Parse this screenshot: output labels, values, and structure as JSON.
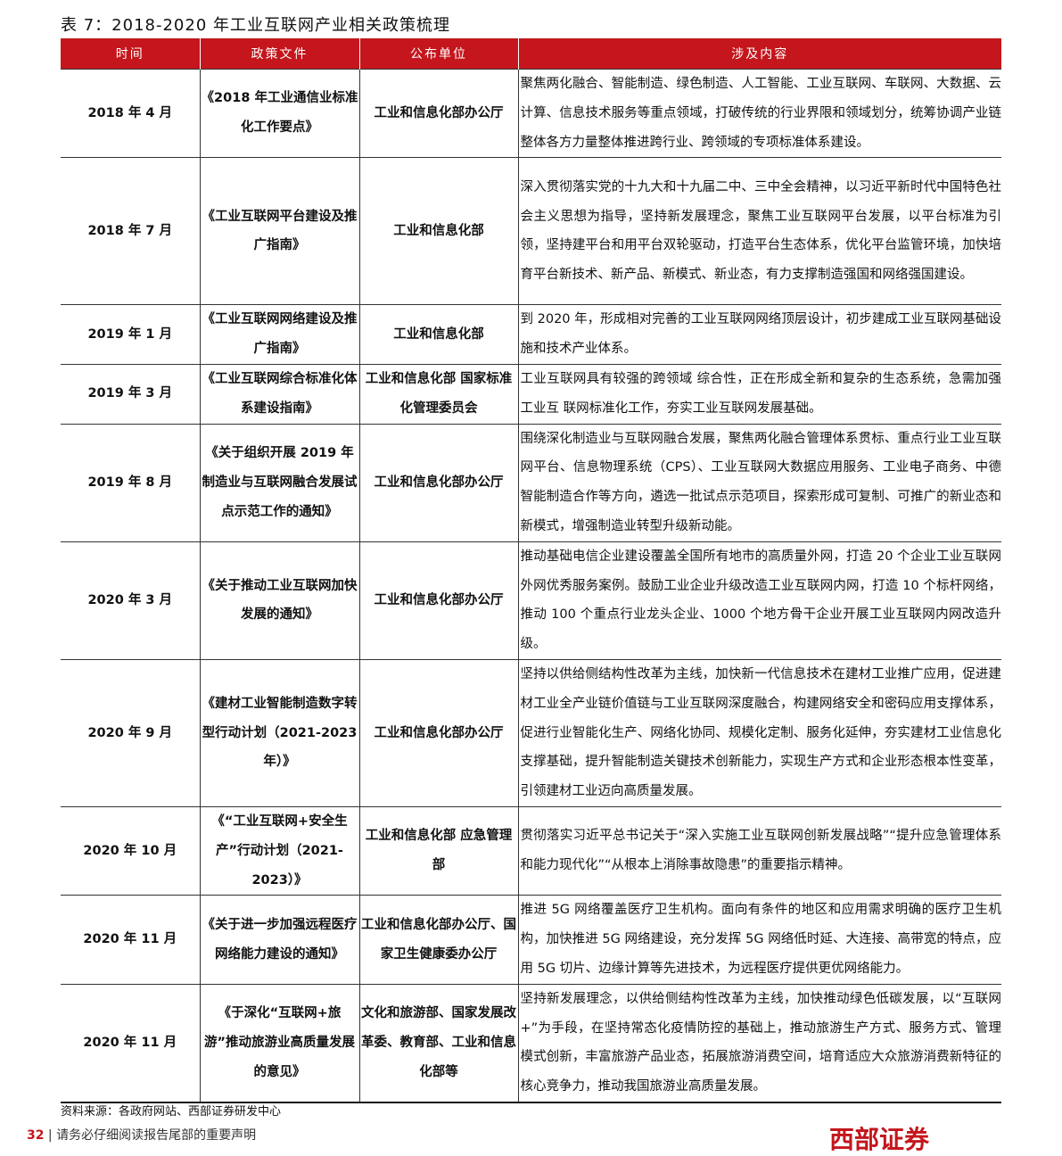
{
  "title": "表 7：2018-2020 年工业互联网产业相关政策梳理",
  "headers": [
    "时间",
    "政策文件",
    "公布单位",
    "涉及内容"
  ],
  "rows": [
    [
      "2018 年 4 月",
      "《2018 年工业通信业标准化工作要点》",
      "工业和信息化部办公厅",
      "聚焦两化融合、智能制造、绿色制造、人工智能、工业互联网、车联网、大数据、云计算、信息技术服务等重点领域，打破传统的行业界限和领域划分，统筹协调产业链整体各方力量整体推进跨行业、跨领域的专项标准体系建设。"
    ],
    [
      "2018 年 7 月",
      "《工业互联网平台建设及推广指南》",
      "工业和信息化部",
      "深入贯彻落实党的十九大和十九届二中、三中全会精神，以习近平新时代中国特色社会主义思想为指导，坚持新发展理念，聚焦工业互联网平台发展，以平台标准为引领，坚持建平台和用平台双轮驱动，打造平台生态体系，优化平台监管环境，加快培育平台新技术、新产品、新模式、新业态，有力支撑制造强国和网络强国建设。"
    ],
    [
      "2019 年 1 月",
      "《工业互联网网络建设及推广指南》",
      "工业和信息化部",
      "到 2020 年，形成相对完善的工业互联网网络顶层设计，初步建成工业互联网基础设施和技术产业体系。"
    ],
    [
      "2019 年 3 月",
      "《工业互联网综合标准化体系建设指南》",
      "工业和信息化部 国家标准化管理委员会",
      "工业互联网具有较强的跨领域 综合性，正在形成全新和复杂的生态系统，急需加强工业互 联网标准化工作，夯实工业互联网发展基础。"
    ],
    [
      "2019 年 8 月",
      "《关于组织开展 2019 年制造业与互联网融合发展试点示范工作的通知》",
      "工业和信息化部办公厅",
      "围绕深化制造业与互联网融合发展，聚焦两化融合管理体系贯标、重点行业工业互联网平台、信息物理系统（CPS）、工业互联网大数据应用服务、工业电子商务、中德智能制造合作等方向，遴选一批试点示范项目，探索形成可复制、可推广的新业态和新模式，增强制造业转型升级新动能。"
    ],
    [
      "2020 年 3 月",
      "《关于推动工业互联网加快发展的通知》",
      "工业和信息化部办公厅",
      "推动基础电信企业建设覆盖全国所有地市的高质量外网，打造 20 个企业工业互联网外网优秀服务案例。鼓励工业企业升级改造工业互联网内网，打造 10 个标杆网络，推动 100 个重点行业龙头企业、1000 个地方骨干企业开展工业互联网内网改造升级。"
    ],
    [
      "2020 年 9 月",
      "《建材工业智能制造数字转型行动计划（2021-2023 年）》",
      "工业和信息化部办公厅",
      "坚持以供给侧结构性改革为主线，加快新一代信息技术在建材工业推广应用，促进建材工业全产业链价值链与工业互联网深度融合，构建网络安全和密码应用支撑体系，促进行业智能化生产、网络化协同、规模化定制、服务化延伸，夯实建材工业信息化支撑基础，提升智能制造关键技术创新能力，实现生产方式和企业形态根本性变革，引领建材工业迈向高质量发展。"
    ],
    [
      "2020 年 10 月",
      "《“工业互联网+安全生产”行动计划（2021-2023）》",
      "工业和信息化部 应急管理部",
      "贯彻落实习近平总书记关于“深入实施工业互联网创新发展战略”“提升应急管理体系和能力现代化”“从根本上消除事故隐患”的重要指示精神。"
    ],
    [
      "2020 年 11 月",
      "《关于进一步加强远程医疗网络能力建设的通知》",
      "工业和信息化部办公厅、国家卫生健康委办公厅",
      "推进 5G 网络覆盖医疗卫生机构。面向有条件的地区和应用需求明确的医疗卫生机构，加快推进 5G 网络建设，充分发挥 5G 网络低时延、大连接、高带宽的特点，应用 5G 切片、边缘计算等先进技术，为远程医疗提供更优网络能力。"
    ],
    [
      "2020 年 11 月",
      "《于深化“互联网+旅游”推动旅游业高质量发展的意见》",
      "文化和旅游部、国家发展改革委、教育部、工业和信息化部等",
      "坚持新发展理念，以供给侧结构性改革为主线，加快推动绿色低碳发展，以“互联网+”为手段，在坚持常态化疫情防控的基础上，推动旅游生产方式、服务方式、管理模式创新，丰富旅游产品业态，拓展旅游消费空间，培育适应大众旅游消费新特征的核心竞争力，推动我国旅游业高质量发展。"
    ]
  ],
  "source": "资料来源：各政府网站、西部证券研发中心",
  "footer": {
    "page": "32",
    "text": "请务必仔细阅读报告尾部的重要声明"
  },
  "logo": "西部证券"
}
